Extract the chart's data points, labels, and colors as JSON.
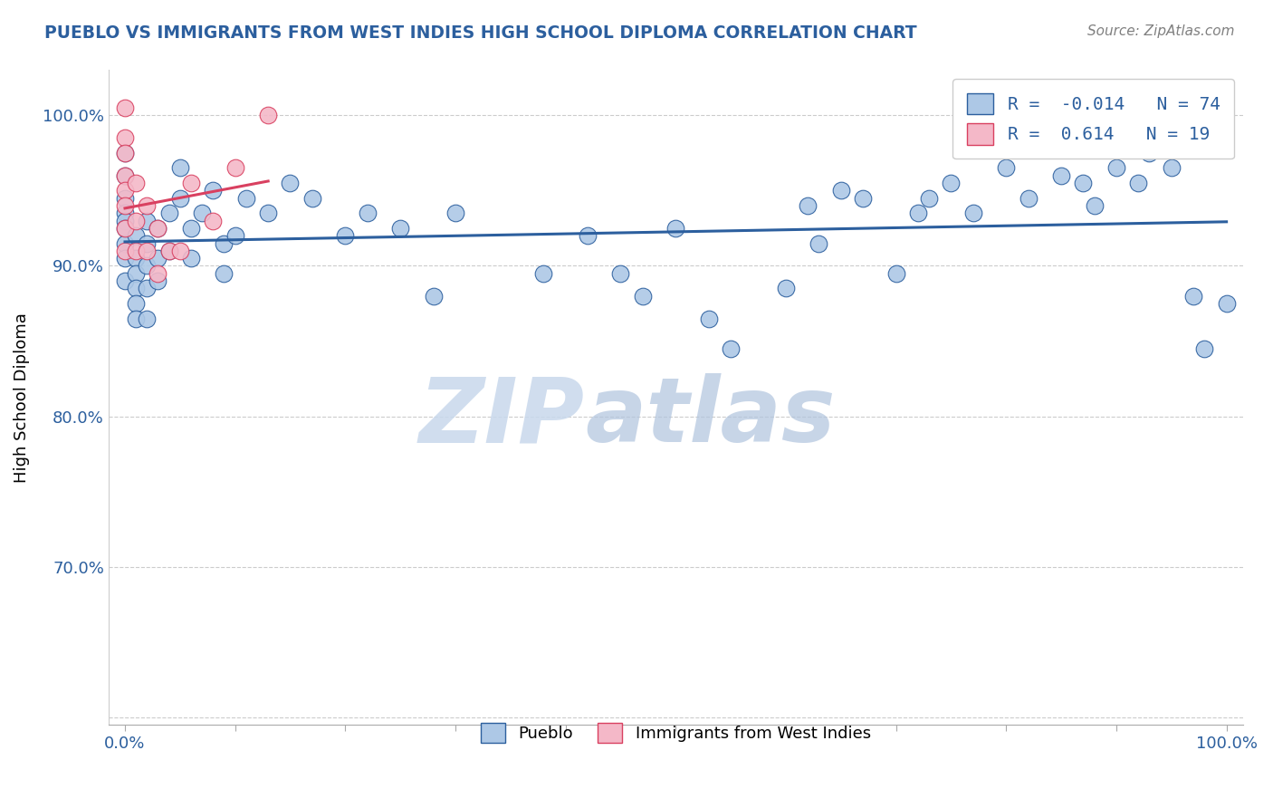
{
  "title": "PUEBLO VS IMMIGRANTS FROM WEST INDIES HIGH SCHOOL DIPLOMA CORRELATION CHART",
  "source": "Source: ZipAtlas.com",
  "ylabel": "High School Diploma",
  "R_blue": -0.014,
  "N_blue": 74,
  "R_pink": 0.614,
  "N_pink": 19,
  "blue_color": "#adc8e6",
  "pink_color": "#f4b8c8",
  "line_blue": "#2c5f9e",
  "line_pink": "#d94060",
  "watermark_zip": "ZIP",
  "watermark_atlas": "atlas",
  "legend_blue_label": "Pueblo",
  "legend_pink_label": "Immigrants from West Indies",
  "blue_points_x": [
    0.0,
    0.0,
    0.0,
    0.0,
    0.0,
    0.0,
    0.0,
    0.0,
    0.0,
    0.01,
    0.01,
    0.01,
    0.01,
    0.01,
    0.01,
    0.02,
    0.02,
    0.02,
    0.02,
    0.02,
    0.03,
    0.03,
    0.03,
    0.04,
    0.04,
    0.05,
    0.05,
    0.06,
    0.06,
    0.07,
    0.08,
    0.09,
    0.09,
    0.1,
    0.11,
    0.13,
    0.15,
    0.17,
    0.2,
    0.22,
    0.25,
    0.28,
    0.3,
    0.38,
    0.42,
    0.45,
    0.47,
    0.5,
    0.53,
    0.55,
    0.6,
    0.62,
    0.63,
    0.65,
    0.67,
    0.7,
    0.72,
    0.73,
    0.75,
    0.77,
    0.8,
    0.82,
    0.85,
    0.87,
    0.88,
    0.9,
    0.92,
    0.93,
    0.95,
    0.97,
    0.98,
    1.0
  ],
  "blue_points_y": [
    0.975,
    0.96,
    0.945,
    0.935,
    0.93,
    0.925,
    0.915,
    0.905,
    0.89,
    0.92,
    0.905,
    0.895,
    0.885,
    0.875,
    0.865,
    0.93,
    0.915,
    0.9,
    0.885,
    0.865,
    0.925,
    0.905,
    0.89,
    0.935,
    0.91,
    0.965,
    0.945,
    0.925,
    0.905,
    0.935,
    0.95,
    0.915,
    0.895,
    0.92,
    0.945,
    0.935,
    0.955,
    0.945,
    0.92,
    0.935,
    0.925,
    0.88,
    0.935,
    0.895,
    0.92,
    0.895,
    0.88,
    0.925,
    0.865,
    0.845,
    0.885,
    0.94,
    0.915,
    0.95,
    0.945,
    0.895,
    0.935,
    0.945,
    0.955,
    0.935,
    0.965,
    0.945,
    0.96,
    0.955,
    0.94,
    0.965,
    0.955,
    0.975,
    0.965,
    0.88,
    0.845,
    0.875
  ],
  "pink_points_x": [
    0.0,
    0.0,
    0.0,
    0.0,
    0.0,
    0.0,
    0.0,
    0.0,
    0.01,
    0.01,
    0.01,
    0.02,
    0.02,
    0.03,
    0.03,
    0.04,
    0.05,
    0.06,
    0.08,
    0.1,
    0.13
  ],
  "pink_points_y": [
    1.005,
    0.985,
    0.975,
    0.96,
    0.95,
    0.94,
    0.925,
    0.91,
    0.955,
    0.93,
    0.91,
    0.94,
    0.91,
    0.925,
    0.895,
    0.91,
    0.91,
    0.955,
    0.93,
    0.965,
    1.0
  ]
}
